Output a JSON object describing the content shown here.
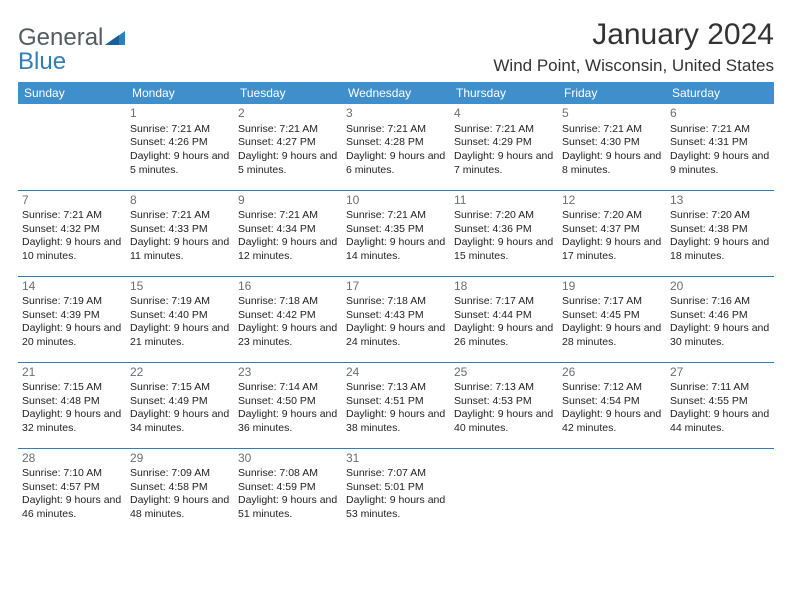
{
  "brand": {
    "general": "General",
    "blue": "Blue"
  },
  "title": "January 2024",
  "location": "Wind Point, Wisconsin, United States",
  "colors": {
    "header_bg": "#3f8fcc",
    "header_text": "#ffffff",
    "divider": "#2f7ebc",
    "daynum": "#6b6f72",
    "body_text": "#222222",
    "logo_gray": "#555b60",
    "logo_blue": "#2f7ebc",
    "background": "#ffffff"
  },
  "dow": [
    "Sunday",
    "Monday",
    "Tuesday",
    "Wednesday",
    "Thursday",
    "Friday",
    "Saturday"
  ],
  "weeks": [
    [
      {
        "n": "",
        "sr": "",
        "ss": "",
        "dl": ""
      },
      {
        "n": "1",
        "sr": "Sunrise: 7:21 AM",
        "ss": "Sunset: 4:26 PM",
        "dl": "Daylight: 9 hours and 5 minutes."
      },
      {
        "n": "2",
        "sr": "Sunrise: 7:21 AM",
        "ss": "Sunset: 4:27 PM",
        "dl": "Daylight: 9 hours and 5 minutes."
      },
      {
        "n": "3",
        "sr": "Sunrise: 7:21 AM",
        "ss": "Sunset: 4:28 PM",
        "dl": "Daylight: 9 hours and 6 minutes."
      },
      {
        "n": "4",
        "sr": "Sunrise: 7:21 AM",
        "ss": "Sunset: 4:29 PM",
        "dl": "Daylight: 9 hours and 7 minutes."
      },
      {
        "n": "5",
        "sr": "Sunrise: 7:21 AM",
        "ss": "Sunset: 4:30 PM",
        "dl": "Daylight: 9 hours and 8 minutes."
      },
      {
        "n": "6",
        "sr": "Sunrise: 7:21 AM",
        "ss": "Sunset: 4:31 PM",
        "dl": "Daylight: 9 hours and 9 minutes."
      }
    ],
    [
      {
        "n": "7",
        "sr": "Sunrise: 7:21 AM",
        "ss": "Sunset: 4:32 PM",
        "dl": "Daylight: 9 hours and 10 minutes."
      },
      {
        "n": "8",
        "sr": "Sunrise: 7:21 AM",
        "ss": "Sunset: 4:33 PM",
        "dl": "Daylight: 9 hours and 11 minutes."
      },
      {
        "n": "9",
        "sr": "Sunrise: 7:21 AM",
        "ss": "Sunset: 4:34 PM",
        "dl": "Daylight: 9 hours and 12 minutes."
      },
      {
        "n": "10",
        "sr": "Sunrise: 7:21 AM",
        "ss": "Sunset: 4:35 PM",
        "dl": "Daylight: 9 hours and 14 minutes."
      },
      {
        "n": "11",
        "sr": "Sunrise: 7:20 AM",
        "ss": "Sunset: 4:36 PM",
        "dl": "Daylight: 9 hours and 15 minutes."
      },
      {
        "n": "12",
        "sr": "Sunrise: 7:20 AM",
        "ss": "Sunset: 4:37 PM",
        "dl": "Daylight: 9 hours and 17 minutes."
      },
      {
        "n": "13",
        "sr": "Sunrise: 7:20 AM",
        "ss": "Sunset: 4:38 PM",
        "dl": "Daylight: 9 hours and 18 minutes."
      }
    ],
    [
      {
        "n": "14",
        "sr": "Sunrise: 7:19 AM",
        "ss": "Sunset: 4:39 PM",
        "dl": "Daylight: 9 hours and 20 minutes."
      },
      {
        "n": "15",
        "sr": "Sunrise: 7:19 AM",
        "ss": "Sunset: 4:40 PM",
        "dl": "Daylight: 9 hours and 21 minutes."
      },
      {
        "n": "16",
        "sr": "Sunrise: 7:18 AM",
        "ss": "Sunset: 4:42 PM",
        "dl": "Daylight: 9 hours and 23 minutes."
      },
      {
        "n": "17",
        "sr": "Sunrise: 7:18 AM",
        "ss": "Sunset: 4:43 PM",
        "dl": "Daylight: 9 hours and 24 minutes."
      },
      {
        "n": "18",
        "sr": "Sunrise: 7:17 AM",
        "ss": "Sunset: 4:44 PM",
        "dl": "Daylight: 9 hours and 26 minutes."
      },
      {
        "n": "19",
        "sr": "Sunrise: 7:17 AM",
        "ss": "Sunset: 4:45 PM",
        "dl": "Daylight: 9 hours and 28 minutes."
      },
      {
        "n": "20",
        "sr": "Sunrise: 7:16 AM",
        "ss": "Sunset: 4:46 PM",
        "dl": "Daylight: 9 hours and 30 minutes."
      }
    ],
    [
      {
        "n": "21",
        "sr": "Sunrise: 7:15 AM",
        "ss": "Sunset: 4:48 PM",
        "dl": "Daylight: 9 hours and 32 minutes."
      },
      {
        "n": "22",
        "sr": "Sunrise: 7:15 AM",
        "ss": "Sunset: 4:49 PM",
        "dl": "Daylight: 9 hours and 34 minutes."
      },
      {
        "n": "23",
        "sr": "Sunrise: 7:14 AM",
        "ss": "Sunset: 4:50 PM",
        "dl": "Daylight: 9 hours and 36 minutes."
      },
      {
        "n": "24",
        "sr": "Sunrise: 7:13 AM",
        "ss": "Sunset: 4:51 PM",
        "dl": "Daylight: 9 hours and 38 minutes."
      },
      {
        "n": "25",
        "sr": "Sunrise: 7:13 AM",
        "ss": "Sunset: 4:53 PM",
        "dl": "Daylight: 9 hours and 40 minutes."
      },
      {
        "n": "26",
        "sr": "Sunrise: 7:12 AM",
        "ss": "Sunset: 4:54 PM",
        "dl": "Daylight: 9 hours and 42 minutes."
      },
      {
        "n": "27",
        "sr": "Sunrise: 7:11 AM",
        "ss": "Sunset: 4:55 PM",
        "dl": "Daylight: 9 hours and 44 minutes."
      }
    ],
    [
      {
        "n": "28",
        "sr": "Sunrise: 7:10 AM",
        "ss": "Sunset: 4:57 PM",
        "dl": "Daylight: 9 hours and 46 minutes."
      },
      {
        "n": "29",
        "sr": "Sunrise: 7:09 AM",
        "ss": "Sunset: 4:58 PM",
        "dl": "Daylight: 9 hours and 48 minutes."
      },
      {
        "n": "30",
        "sr": "Sunrise: 7:08 AM",
        "ss": "Sunset: 4:59 PM",
        "dl": "Daylight: 9 hours and 51 minutes."
      },
      {
        "n": "31",
        "sr": "Sunrise: 7:07 AM",
        "ss": "Sunset: 5:01 PM",
        "dl": "Daylight: 9 hours and 53 minutes."
      },
      {
        "n": "",
        "sr": "",
        "ss": "",
        "dl": ""
      },
      {
        "n": "",
        "sr": "",
        "ss": "",
        "dl": ""
      },
      {
        "n": "",
        "sr": "",
        "ss": "",
        "dl": ""
      }
    ]
  ]
}
